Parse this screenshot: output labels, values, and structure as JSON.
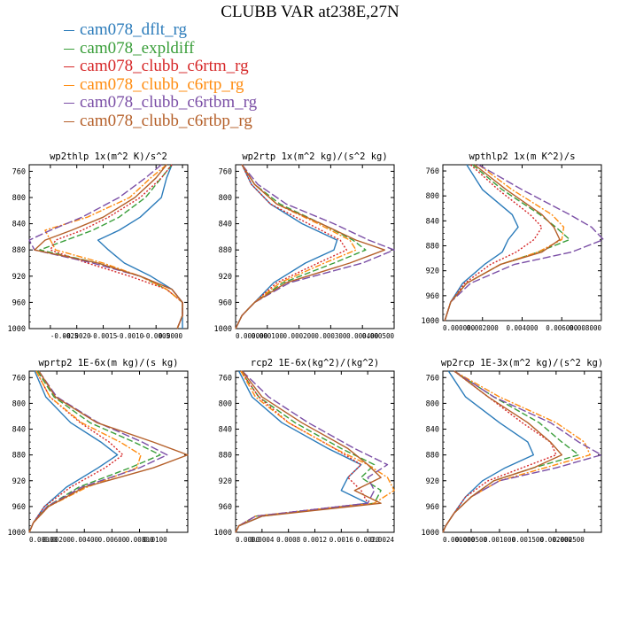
{
  "title": "CLUBB VAR at238E,27N",
  "legend": [
    {
      "label": "cam078_dflt_rg",
      "color": "#2b7bba",
      "dash": ""
    },
    {
      "label": "cam078_expldiff",
      "color": "#3a9e3a",
      "dash": "7,3"
    },
    {
      "label": "cam078_clubb_c6rtm_rg",
      "color": "#d62728",
      "dash": "2,2"
    },
    {
      "label": "cam078_clubb_c6rtp_rg",
      "color": "#ff8c10",
      "dash": "7,2,2,2"
    },
    {
      "label": "cam078_clubb_c6rtbm_rg",
      "color": "#7b4fa6",
      "dash": "9,3"
    },
    {
      "label": "cam078_clubb_c6rtbp_rg",
      "color": "#b5602a",
      "dash": ""
    }
  ],
  "yticks": [
    "760",
    "800",
    "840",
    "880",
    "920",
    "960",
    "1000"
  ],
  "chart_data": [
    {
      "type": "line",
      "title": "wp2thlp  1x(m^2 K)/s^2",
      "xlim": [
        -0.0029,
        0.0001
      ],
      "ylim": [
        1000,
        750
      ],
      "xticks": [
        -0.0025,
        -0.002,
        -0.0015,
        -0.001,
        -0.0005,
        0.0
      ],
      "xticklabels": [
        "-0.0025",
        "-0.0020",
        "-0.0015",
        "-0.0010",
        "-0.0005",
        "0.0000"
      ],
      "y": [
        750,
        770,
        800,
        830,
        850,
        865,
        880,
        900,
        920,
        940,
        960,
        980,
        1000
      ],
      "series": [
        {
          "values": [
            -0.0002,
            -0.0003,
            -0.0004,
            -0.0008,
            -0.0012,
            -0.0016,
            -0.0014,
            -0.0011,
            -0.0006,
            -0.0002,
            0.0,
            0.0,
            0.0
          ]
        },
        {
          "values": [
            -0.0002,
            -0.0004,
            -0.0007,
            -0.0012,
            -0.0017,
            -0.0022,
            -0.0027,
            -0.0016,
            -0.0008,
            -0.0003,
            0.0,
            0.0,
            -0.0001
          ]
        },
        {
          "values": [
            -0.0002,
            -0.0004,
            -0.0008,
            -0.0014,
            -0.0019,
            -0.0024,
            -0.0025,
            -0.0018,
            -0.001,
            -0.0003,
            0.0,
            0.0,
            -0.0001
          ]
        },
        {
          "values": [
            -0.0003,
            -0.0006,
            -0.001,
            -0.0018,
            -0.0026,
            -0.0025,
            -0.0024,
            -0.0015,
            -0.0008,
            -0.0003,
            0.0,
            0.0,
            -0.0001
          ]
        },
        {
          "values": [
            -0.0004,
            -0.0007,
            -0.0012,
            -0.0019,
            -0.0025,
            -0.0029,
            -0.0028,
            -0.0017,
            -0.0008,
            -0.0002,
            0.0,
            0.0,
            -0.0001
          ]
        },
        {
          "values": [
            -0.0003,
            -0.0005,
            -0.0009,
            -0.0015,
            -0.0021,
            -0.0026,
            -0.0028,
            -0.0016,
            -0.0008,
            -0.0002,
            0.0,
            0.0,
            -0.0001
          ]
        }
      ]
    },
    {
      "type": "line",
      "title": "wp2rtp  1x(m^2 kg)/(s^2 kg)",
      "xlim": [
        0,
        0.0005
      ],
      "ylim": [
        1000,
        750
      ],
      "xticks": [
        0,
        0.0001,
        0.0002,
        0.0003,
        0.0004,
        0.0005
      ],
      "xticklabels": [
        "0.000000",
        "0.000100",
        "0.000200",
        "0.000300",
        "0.000400",
        "0.000500"
      ],
      "y": [
        750,
        780,
        810,
        840,
        865,
        880,
        900,
        930,
        960,
        980,
        1000
      ],
      "series": [
        {
          "values": [
            2e-05,
            5e-05,
            0.00011,
            0.00021,
            0.00032,
            0.00031,
            0.00022,
            0.00012,
            6e-05,
            2e-05,
            0.0
          ]
        },
        {
          "values": [
            2e-05,
            6e-05,
            0.00014,
            0.00027,
            0.00037,
            0.00041,
            0.00031,
            0.00015,
            6e-05,
            2e-05,
            0.0
          ]
        },
        {
          "values": [
            2e-05,
            5e-05,
            0.00011,
            0.00023,
            0.00033,
            0.00035,
            0.00026,
            0.00013,
            6e-05,
            2e-05,
            0.0
          ]
        },
        {
          "values": [
            2e-05,
            6e-05,
            0.00013,
            0.00026,
            0.00036,
            0.00038,
            0.00028,
            0.00014,
            6e-05,
            2e-05,
            0.0
          ]
        },
        {
          "values": [
            2e-05,
            7e-05,
            0.00016,
            0.00031,
            0.00042,
            0.0005,
            0.0004,
            0.00017,
            6e-05,
            2e-05,
            0.0
          ]
        },
        {
          "values": [
            2e-05,
            6e-05,
            0.00013,
            0.00027,
            0.00038,
            0.00047,
            0.00036,
            0.00016,
            6e-05,
            2e-05,
            0.0
          ]
        }
      ]
    },
    {
      "type": "line",
      "title": "wpthlp2  1x(m K^2)/s",
      "xlim": [
        0,
        0.008
      ],
      "ylim": [
        1000,
        750
      ],
      "xticks": [
        0,
        0.002,
        0.004,
        0.006,
        0.008
      ],
      "xticklabels": [
        "0.000000",
        "0.002000",
        "0.004000",
        "0.006000",
        "0.008000"
      ],
      "y": [
        750,
        790,
        830,
        850,
        870,
        890,
        910,
        940,
        970,
        1000
      ],
      "series": [
        {
          "values": [
            0.0012,
            0.002,
            0.0035,
            0.0038,
            0.0033,
            0.003,
            0.0021,
            0.001,
            0.0004,
            0.0001
          ]
        },
        {
          "values": [
            0.0015,
            0.003,
            0.0049,
            0.0057,
            0.0064,
            0.0048,
            0.0029,
            0.0012,
            0.0004,
            0.0001
          ]
        },
        {
          "values": [
            0.0014,
            0.0028,
            0.0044,
            0.005,
            0.0046,
            0.0037,
            0.0024,
            0.0011,
            0.0004,
            0.0001
          ]
        },
        {
          "values": [
            0.0018,
            0.0035,
            0.0055,
            0.0061,
            0.006,
            0.0048,
            0.0029,
            0.0012,
            0.0004,
            0.0001
          ]
        },
        {
          "values": [
            0.0018,
            0.004,
            0.0064,
            0.0075,
            0.0081,
            0.0065,
            0.0036,
            0.0014,
            0.0004,
            0.0001
          ]
        },
        {
          "values": [
            0.0016,
            0.0032,
            0.005,
            0.0056,
            0.0059,
            0.005,
            0.0029,
            0.0012,
            0.0004,
            0.0001
          ]
        }
      ]
    },
    {
      "type": "line",
      "title": "wprtp2  1E-6x(m kg)/(s kg)",
      "xlim": [
        0,
        0.0115
      ],
      "ylim": [
        1000,
        750
      ],
      "xticks": [
        0,
        0.002,
        0.004,
        0.006,
        0.008,
        0.01
      ],
      "xticklabels": [
        "0.00000",
        "0.00200",
        "0.00400",
        "0.00600",
        "0.00800",
        "0.0100"
      ],
      "y": [
        750,
        790,
        830,
        860,
        880,
        900,
        930,
        960,
        985,
        1000
      ],
      "series": [
        {
          "values": [
            0.0004,
            0.0012,
            0.003,
            0.0052,
            0.0064,
            0.005,
            0.0027,
            0.0011,
            0.0003,
            0.0
          ]
        },
        {
          "values": [
            0.0006,
            0.0018,
            0.0044,
            0.0076,
            0.0095,
            0.0073,
            0.0036,
            0.0013,
            0.0003,
            0.0
          ]
        },
        {
          "values": [
            0.0005,
            0.0015,
            0.0037,
            0.0058,
            0.0068,
            0.0055,
            0.003,
            0.0011,
            0.0003,
            0.0
          ]
        },
        {
          "values": [
            0.0005,
            0.0015,
            0.0038,
            0.0066,
            0.0081,
            0.0078,
            0.0042,
            0.0014,
            0.0003,
            0.0
          ]
        },
        {
          "values": [
            0.0007,
            0.002,
            0.005,
            0.0082,
            0.01,
            0.008,
            0.0038,
            0.0013,
            0.0003,
            0.0
          ]
        },
        {
          "values": [
            0.0007,
            0.0019,
            0.0049,
            0.009,
            0.0115,
            0.009,
            0.004,
            0.0014,
            0.0003,
            0.0
          ]
        }
      ]
    },
    {
      "type": "line",
      "title": "rcp2  1E-6x(kg^2)/(kg^2)",
      "xlim": [
        0,
        0.0024
      ],
      "ylim": [
        1000,
        750
      ],
      "xticks": [
        0,
        0.0004,
        0.0008,
        0.0012,
        0.0016,
        0.002,
        0.0024
      ],
      "xticklabels": [
        "0.0000",
        "0.0004",
        "0.0008",
        "0.0012",
        "0.0016",
        "0.0020",
        "0.0024"
      ],
      "y": [
        750,
        790,
        830,
        870,
        895,
        915,
        935,
        955,
        975,
        990,
        1000
      ],
      "series": [
        {
          "values": [
            5e-05,
            0.00025,
            0.0007,
            0.0014,
            0.0019,
            0.0017,
            0.0016,
            0.002,
            0.0004,
            5e-05,
            0.0
          ]
        },
        {
          "values": [
            8e-05,
            0.00035,
            0.0009,
            0.0016,
            0.0021,
            0.0019,
            0.0022,
            0.0021,
            0.0003,
            5e-05,
            0.0
          ]
        },
        {
          "values": [
            8e-05,
            0.00035,
            0.0008,
            0.0015,
            0.0019,
            0.0017,
            0.0019,
            0.002,
            0.0003,
            5e-05,
            0.0
          ]
        },
        {
          "values": [
            8e-05,
            0.0003,
            0.0008,
            0.0015,
            0.002,
            0.0023,
            0.0024,
            0.0021,
            0.0003,
            5e-05,
            0.0
          ]
        },
        {
          "values": [
            0.0001,
            0.0005,
            0.0011,
            0.0018,
            0.0023,
            0.002,
            0.0021,
            0.002,
            0.0003,
            5e-05,
            0.0
          ]
        },
        {
          "values": [
            0.0001,
            0.0004,
            0.001,
            0.0017,
            0.002,
            0.0022,
            0.0018,
            0.0022,
            0.0004,
            5e-05,
            0.0
          ]
        }
      ]
    },
    {
      "type": "line",
      "title": "wp2rcp  1E-3x(m^2 kg)/(s^2 kg)",
      "xlim": [
        0,
        0.0028
      ],
      "ylim": [
        1000,
        750
      ],
      "xticks": [
        0,
        0.0005,
        0.001,
        0.0015,
        0.002,
        0.0025
      ],
      "xticklabels": [
        "0.000000",
        "0.000500",
        "0.001000",
        "0.001500",
        "0.002000",
        "0.002500"
      ],
      "y": [
        750,
        790,
        830,
        860,
        880,
        900,
        920,
        945,
        970,
        990,
        1000
      ],
      "series": [
        {
          "values": [
            0.0001,
            0.0004,
            0.001,
            0.0015,
            0.0016,
            0.0011,
            0.0007,
            0.0004,
            0.0002,
            5e-05,
            0.0
          ]
        },
        {
          "values": [
            0.0002,
            0.0009,
            0.0017,
            0.0021,
            0.0024,
            0.0016,
            0.0009,
            0.0005,
            0.0002,
            5e-05,
            0.0
          ]
        },
        {
          "values": [
            0.0002,
            0.0008,
            0.0014,
            0.0019,
            0.002,
            0.0014,
            0.0008,
            0.0004,
            0.0002,
            5e-05,
            0.0
          ]
        },
        {
          "values": [
            0.0002,
            0.001,
            0.002,
            0.0025,
            0.0026,
            0.0018,
            0.001,
            0.0005,
            0.0002,
            5e-05,
            0.0
          ]
        },
        {
          "values": [
            0.0002,
            0.0009,
            0.0019,
            0.0024,
            0.0028,
            0.002,
            0.001,
            0.0005,
            0.0002,
            5e-05,
            0.0
          ]
        },
        {
          "values": [
            0.0002,
            0.0008,
            0.0015,
            0.0019,
            0.0021,
            0.0016,
            0.0009,
            0.0005,
            0.0002,
            5e-05,
            0.0
          ]
        }
      ]
    }
  ]
}
